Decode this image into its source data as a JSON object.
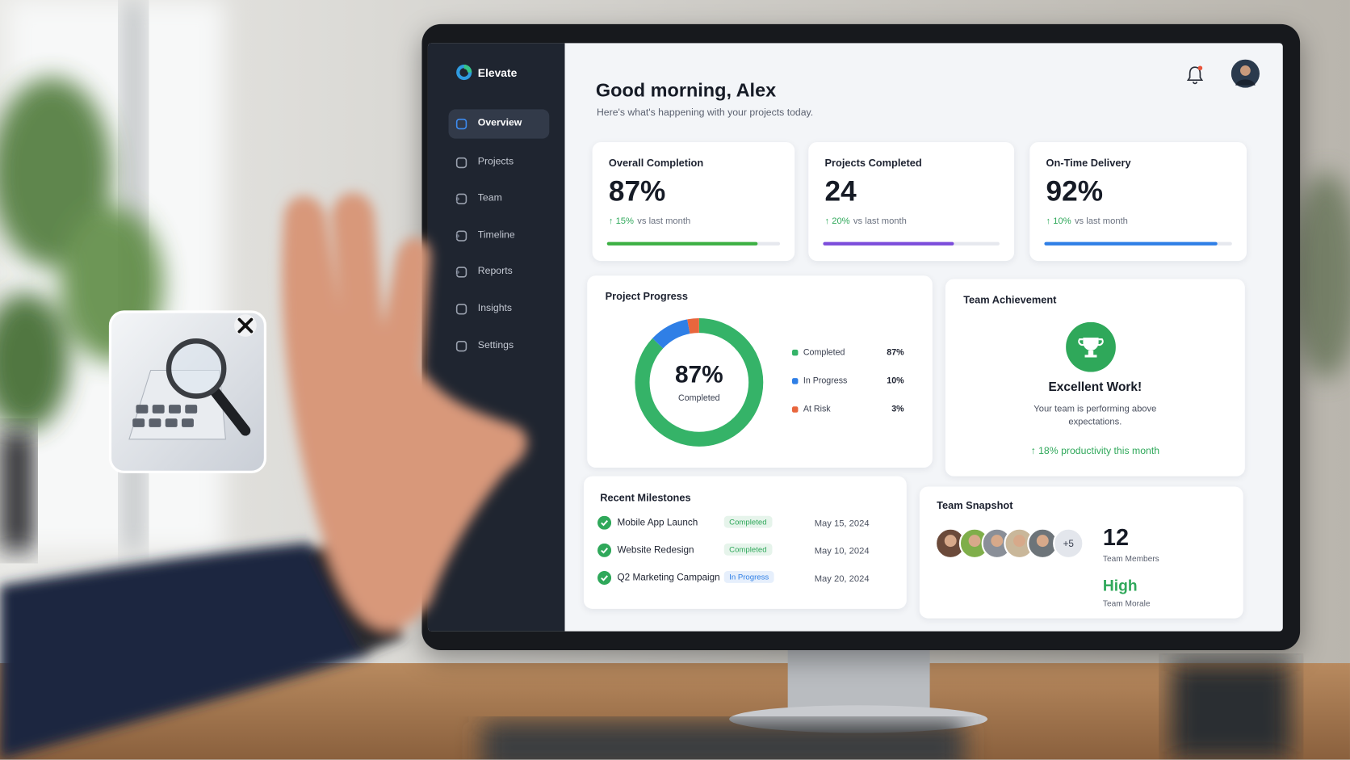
{
  "app": {
    "name": "Elevate",
    "nav": [
      {
        "label": "Overview",
        "active": true,
        "chevron": false
      },
      {
        "label": "Projects",
        "active": false,
        "chevron": false
      },
      {
        "label": "Team",
        "active": false,
        "chevron": true
      },
      {
        "label": "Timeline",
        "active": false,
        "chevron": true
      },
      {
        "label": "Reports",
        "active": false,
        "chevron": true
      },
      {
        "label": "Insights",
        "active": false,
        "chevron": false
      },
      {
        "label": "Settings",
        "active": false,
        "chevron": false
      }
    ]
  },
  "header": {
    "greeting": "Good morning, Alex",
    "subtitle": "Here's what's happening with your projects today."
  },
  "kpis": [
    {
      "title": "Overall Completion",
      "value": "87%",
      "change": "↑ 15%",
      "change_note": "vs last month",
      "progress": 87,
      "color": "#3cb043"
    },
    {
      "title": "Projects Completed",
      "value": "24",
      "change": "↑ 20%",
      "change_note": "vs last month",
      "progress": 74,
      "color": "#7c4ddb"
    },
    {
      "title": "On-Time Delivery",
      "value": "92%",
      "change": "↑ 10%",
      "change_note": "vs last month",
      "progress": 92,
      "color": "#2f7fe6"
    }
  ],
  "project_progress": {
    "title": "Project Progress",
    "center_value": "87%",
    "center_label": "Completed",
    "segments": [
      {
        "name": "Completed",
        "value": 87,
        "label": "87%",
        "color": "#35b368"
      },
      {
        "name": "In Progress",
        "value": 10,
        "label": "10%",
        "color": "#2f7fe6"
      },
      {
        "name": "At Risk",
        "value": 3,
        "label": "3%",
        "color": "#e8663d"
      }
    ]
  },
  "team_achievement": {
    "title": "Team Achievement",
    "heading": "Excellent Work!",
    "text": "Your team is performing above expectations.",
    "highlight": "↑ 18% productivity this month"
  },
  "milestones": {
    "title": "Recent Milestones",
    "items": [
      {
        "name": "Mobile App Launch",
        "status": "Completed",
        "badge_color": "#2fa85a",
        "date": "May 15, 2024"
      },
      {
        "name": "Website Redesign",
        "status": "Completed",
        "badge_color": "#2fa85a",
        "date": "May 10, 2024"
      },
      {
        "name": "Q2 Marketing Campaign",
        "status": "In Progress",
        "badge_color": "#2f7fe6",
        "date": "May 20, 2024"
      }
    ]
  },
  "team_snapshot": {
    "title": "Team Snapshot",
    "extra": "+5",
    "count": "12",
    "count_label": "Team Members",
    "morale": "High",
    "morale_label": "Team Morale"
  }
}
